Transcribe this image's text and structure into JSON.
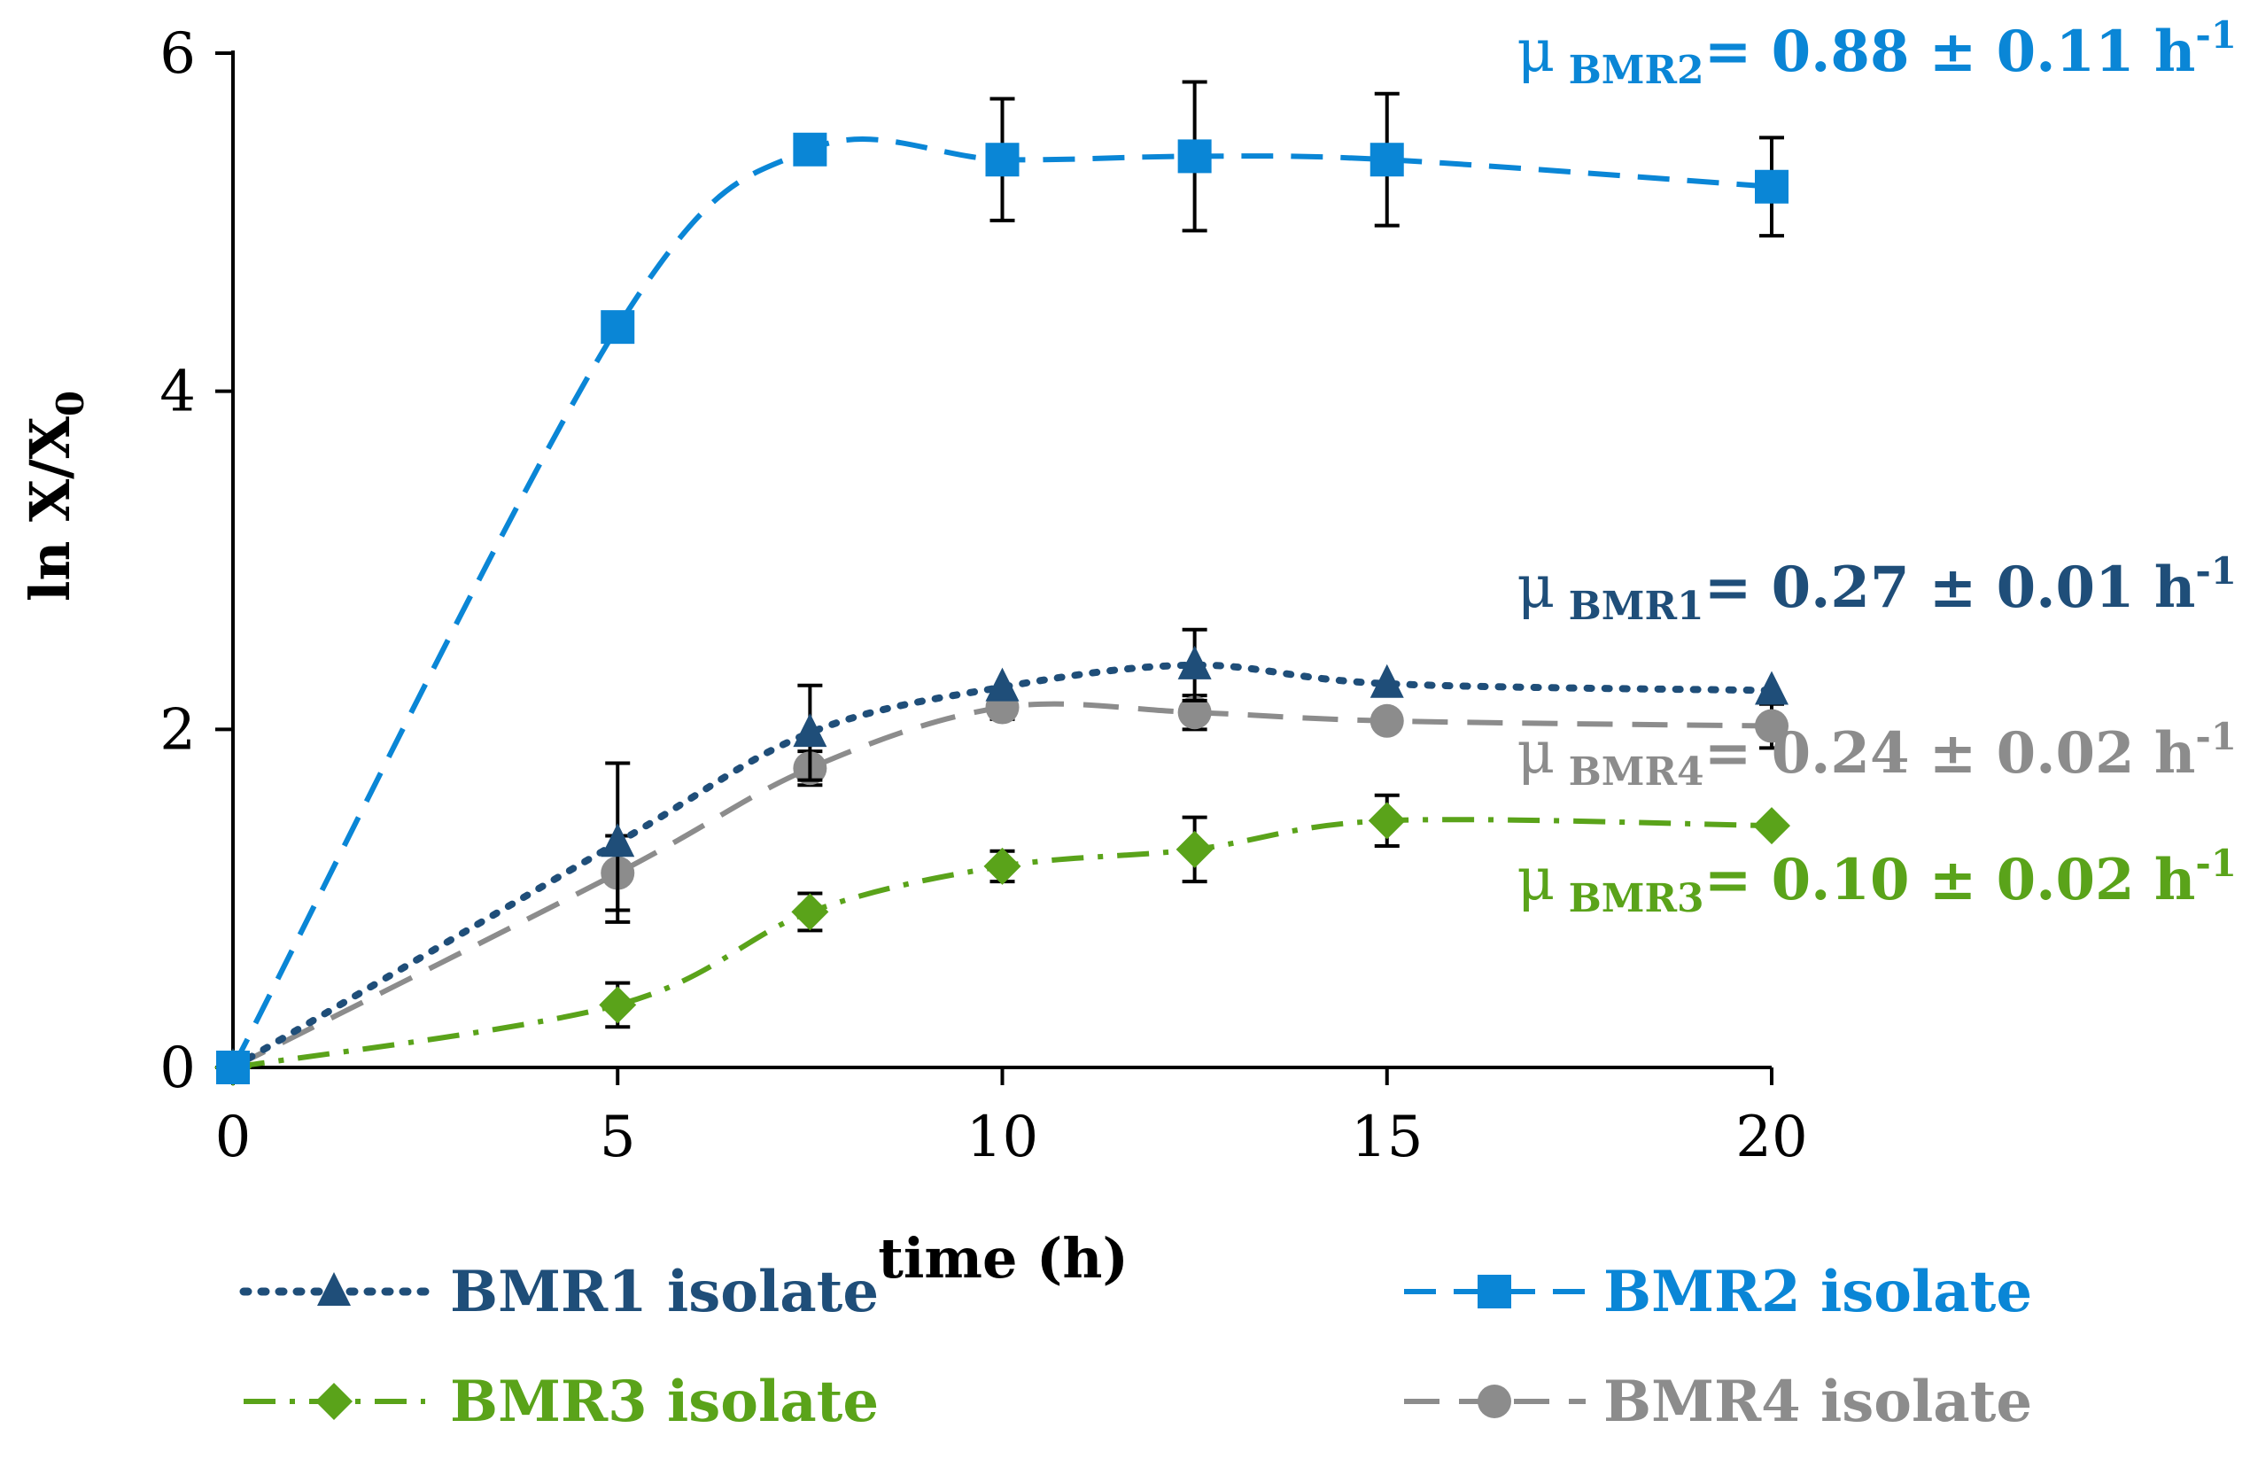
{
  "chart_data": {
    "type": "line",
    "title": "",
    "xlabel": "time (h)",
    "ylabel_main": "ln X/X",
    "ylabel_sub": "0",
    "xlim": [
      0,
      20
    ],
    "ylim": [
      0,
      6
    ],
    "xticks": [
      0,
      5,
      10,
      15,
      20
    ],
    "yticks": [
      0,
      2,
      4,
      6
    ],
    "x": [
      0,
      5,
      7.5,
      10,
      12.5,
      15,
      20
    ],
    "series": [
      {
        "name": "BMR1 isolate",
        "color": "#1F4E79",
        "marker": "triangle",
        "line": "dotted",
        "values": [
          0,
          1.33,
          1.98,
          2.25,
          2.38,
          2.27,
          2.23
        ],
        "errors": [
          0,
          0.47,
          0.28,
          0.0,
          0.21,
          0.0,
          0.0
        ],
        "annotation": {
          "mu": "μ",
          "sub": "BMR1",
          "eq": "= 0.27 ± 0.01 h",
          "sup": "-1"
        }
      },
      {
        "name": "BMR2 isolate",
        "color": "#0A86D6",
        "marker": "square",
        "line": "dashed",
        "values": [
          0,
          4.38,
          5.43,
          5.37,
          5.39,
          5.37,
          5.21
        ],
        "errors": [
          0,
          0,
          0,
          0.36,
          0.44,
          0.39,
          0.29
        ],
        "annotation": {
          "mu": "μ",
          "sub": "BMR2",
          "eq": "= 0.88 ± 0.11 h",
          "sup": "-1"
        }
      },
      {
        "name": "BMR3 isolate",
        "color": "#5AA31A",
        "marker": "diamond",
        "line": "dashdot",
        "values": [
          0,
          0.37,
          0.92,
          1.19,
          1.29,
          1.46,
          1.43
        ],
        "errors": [
          0,
          0.13,
          0.11,
          0.09,
          0.19,
          0.15,
          0.0
        ],
        "annotation": {
          "mu": "μ",
          "sub": "BMR3",
          "eq": "= 0.10 ± 0.02 h",
          "sup": "-1"
        }
      },
      {
        "name": "BMR4 isolate",
        "color": "#8C8C8C",
        "marker": "circle",
        "line": "longdash",
        "values": [
          0,
          1.15,
          1.77,
          2.13,
          2.1,
          2.05,
          2.02
        ],
        "errors": [
          0,
          0.22,
          0.1,
          0.07,
          0.1,
          0.05,
          0.13
        ],
        "annotation": {
          "mu": "μ",
          "sub": "BMR4",
          "eq": "= 0.24 ± 0.02 h",
          "sup": "-1"
        }
      }
    ],
    "legend": {
      "position": "bottom",
      "order": [
        "BMR1 isolate",
        "BMR2 isolate",
        "BMR3 isolate",
        "BMR4 isolate"
      ]
    }
  }
}
